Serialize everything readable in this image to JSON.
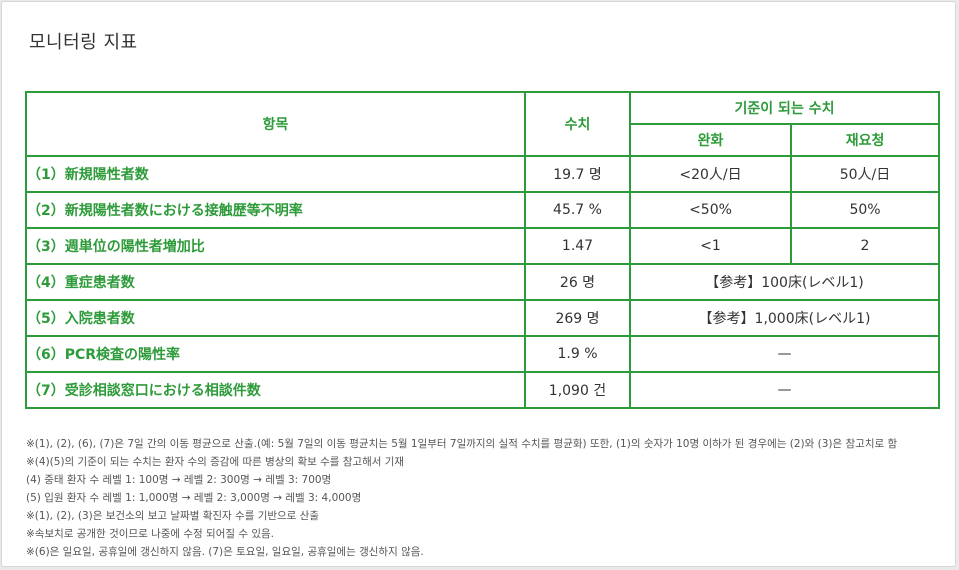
{
  "page": {
    "title": "모니터링 지표"
  },
  "table": {
    "headers": {
      "item": "항목",
      "value": "수치",
      "criteria": "기준이 되는 수치",
      "relax": "완화",
      "request": "재요청"
    },
    "rows": [
      {
        "label": "（1）新規陽性者数",
        "value": "19.7 명",
        "relax": "<20人/日",
        "request": "50人/日"
      },
      {
        "label": "（2）新規陽性者数における接触歴等不明率",
        "value": "45.7 %",
        "relax": "<50%",
        "request": "50%"
      },
      {
        "label": "（3）週単位の陽性者増加比",
        "value": "1.47",
        "relax": "<1",
        "request": "2"
      },
      {
        "label": "（4）重症患者数",
        "value": "26 명",
        "merged": "【参考】100床(レベル1)"
      },
      {
        "label": "（5）入院患者数",
        "value": "269 명",
        "merged": "【参考】1,000床(レベル1)"
      },
      {
        "label": "（6）PCR検査の陽性率",
        "value": "1.9 %",
        "merged": "—"
      },
      {
        "label": "（7）受診相談窓口における相談件数",
        "value": "1,090 건",
        "merged": "—"
      }
    ]
  },
  "notes": [
    "※(1), (2), (6), (7)은 7일 간의 이동 평균으로 산출.(예: 5월 7일의 이동 평균치는 5월 1일부터 7일까지의 실적 수치를 평균화) 또한, (1)의 숫자가 10명 이하가 된 경우에는 (2)와 (3)은 참고치로 함",
    "※(4)(5)의 기준이 되는 수치는 환자 수의 증감에 따른 병상의 확보 수를 참고해서 기재",
    "(4) 중태 환자 수 레벨 1: 100명 → 레벨 2: 300명 → 레벨 3: 700명",
    "(5) 입원 환자 수 레벨 1: 1,000명 → 레벨 2: 3,000명 → 레벨 3: 4,000명",
    "※(1), (2), (3)은 보건소의 보고 날짜별 확진자 수를 기반으로 산출",
    "※속보치로 공개한 것이므로 나중에 수정 되어질 수 있음.",
    "※(6)은 일요일, 공휴일에 갱신하지 않음. (7)은 토요일, 일요일, 공휴일에는 갱신하지 않음."
  ],
  "colors": {
    "accent": "#2e9b3a",
    "text": "#333333",
    "note_text": "#555555"
  }
}
